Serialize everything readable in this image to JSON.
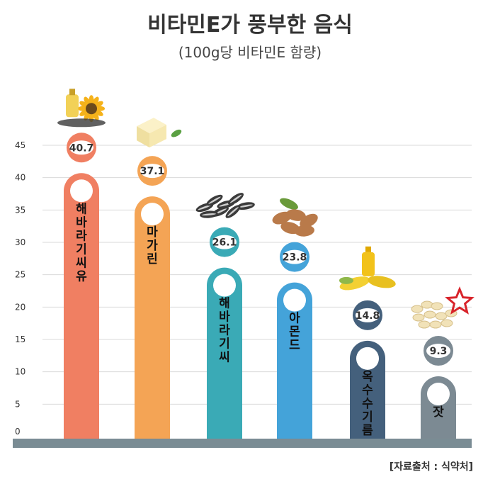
{
  "chart_data": {
    "type": "bar",
    "title": "비타민E가 풍부한 음식",
    "subtitle": "(100g당 비타민E 함량)",
    "categories": [
      "해바라기씨유",
      "마가린",
      "해바라기씨",
      "아몬드",
      "옥수수기름",
      "잣"
    ],
    "values": [
      40.7,
      37.1,
      26.1,
      23.8,
      14.8,
      9.3
    ],
    "value_labels": [
      "40.7",
      "37.1",
      "26.1",
      "23.8",
      "14.8",
      "9.3"
    ],
    "ylim": [
      0,
      45
    ],
    "yticks": [
      0,
      5,
      10,
      15,
      20,
      25,
      30,
      35,
      40,
      45
    ],
    "grid": true,
    "colors": [
      "#f07f62",
      "#f4a455",
      "#3aaab6",
      "#44a3d9",
      "#44607c",
      "#7c8a93"
    ],
    "food_icons": [
      "sunflower-oil-icon",
      "margarine-icon",
      "sunflower-seeds-icon",
      "almond-icon",
      "corn-oil-icon",
      "pine-nut-icon"
    ]
  },
  "source": "[자료출처 : 식약처]"
}
